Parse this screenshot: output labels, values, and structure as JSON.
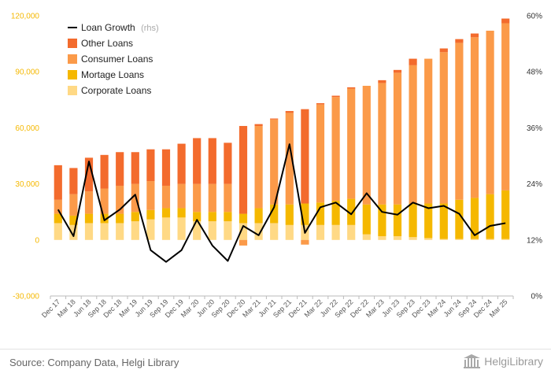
{
  "colors": {
    "other": "#f36b2d",
    "consumer": "#fb9a49",
    "mortgage": "#f5b800",
    "corporate": "#ffd985",
    "growth": "#000000",
    "left_axis": "#f5b800"
  },
  "legend": {
    "growth_label": "Loan Growth",
    "growth_suffix": "(rhs)",
    "other_label": "Other Loans",
    "consumer_label": "Consumer Loans",
    "mortgage_label": "Mortage Loans",
    "corporate_label": "Corporate Loans"
  },
  "footer": {
    "source": "Source: Company Data, Helgi Library",
    "brand": "HelgiLibrary",
    "brand_icon": "helgi-library-logo-icon"
  },
  "chart_data": {
    "type": "bar",
    "stacked": true,
    "categories": [
      "Dec 17",
      "Mar 18",
      "Jun 18",
      "Sep 18",
      "Dec 18",
      "Mar 19",
      "Jun 19",
      "Sep 19",
      "Dec 19",
      "Mar 20",
      "Jun 20",
      "Sep 20",
      "Dec 20",
      "Mar 21",
      "Jun 21",
      "Sep 21",
      "Dec 21",
      "Mar 22",
      "Jun 22",
      "Sep 22",
      "Dec 22",
      "Mar 23",
      "Jun 23",
      "Sep 23",
      "Dec 23",
      "Mar 24",
      "Jun 24",
      "Sep 24",
      "Dec 24",
      "Mar 25"
    ],
    "x_tick_labels": [
      "Dec 17",
      "Mar 18",
      "Jun 18",
      "Sep 18",
      "Dec 18",
      "Mar 19",
      "Jun 19",
      "Sep 19",
      "Dec 19",
      "Mar 20",
      "Jun 20",
      "Sep 20",
      "Dec 20",
      "Mar 21",
      "Jun 21",
      "Sep 21",
      "Dec 21",
      "Mar 22",
      "Jun 22",
      "Sep 22",
      "Dec 22",
      "Mar 23",
      "Jun 23",
      "Sep 23",
      "Dec 23",
      "Mar 24",
      "Jun 24",
      "Sep 24",
      "Dec 24",
      "Mar 25"
    ],
    "series": [
      {
        "name": "Corporate Loans",
        "key": "corporate",
        "values": [
          9000,
          8000,
          9000,
          9000,
          9000,
          10000,
          11000,
          12000,
          12000,
          10000,
          10000,
          10000,
          9000,
          9000,
          9000,
          8000,
          8000,
          8000,
          8000,
          8000,
          3000,
          2000,
          2000,
          1500,
          1000,
          500,
          500,
          500,
          500,
          500
        ]
      },
      {
        "name": "Mortage Loans",
        "key": "mortgage",
        "values": [
          5000,
          5000,
          5000,
          5000,
          5000,
          5000,
          5000,
          5000,
          5000,
          5000,
          5000,
          5000,
          5000,
          8000,
          10000,
          11000,
          11500,
          12000,
          13000,
          14000,
          16000,
          17000,
          17000,
          18000,
          18500,
          19000,
          21000,
          22000,
          24000,
          26000
        ]
      },
      {
        "name": "Consumer Loans",
        "key": "consumer",
        "values": [
          7500,
          11500,
          12000,
          13500,
          15000,
          15000,
          15500,
          12000,
          13000,
          15000,
          15000,
          15000,
          -3000,
          44000,
          45500,
          49000,
          -2500,
          52500,
          55500,
          59000,
          63500,
          65000,
          70500,
          74000,
          77500,
          81000,
          84000,
          86000,
          87500,
          89500
        ]
      },
      {
        "name": "Other Loans",
        "key": "other",
        "values": [
          18500,
          14000,
          18000,
          18000,
          18000,
          17000,
          17000,
          19500,
          21500,
          24500,
          24500,
          22000,
          47000,
          1000,
          500,
          1000,
          50500,
          700,
          700,
          700,
          0,
          1500,
          1500,
          3500,
          0,
          2000,
          2000,
          2000,
          0,
          2500
        ]
      },
      {
        "name": "Loan Growth",
        "key": "growth",
        "axis": "rhs",
        "values": [
          18.5,
          12.8,
          28.8,
          16.2,
          18.5,
          21.7,
          9.8,
          7.3,
          9.8,
          16.3,
          10.8,
          7.5,
          15,
          13,
          19,
          32.5,
          13.5,
          19,
          20,
          17.5,
          22,
          18,
          17.4,
          20,
          18.8,
          19.3,
          17.6,
          13,
          15,
          15.6
        ]
      }
    ],
    "left_axis": {
      "min": -30000,
      "max": 120000,
      "ticks": [
        -30000,
        0,
        30000,
        60000,
        90000,
        120000
      ],
      "tick_labels": [
        "-30,000",
        "0",
        "30,000",
        "60,000",
        "90,000",
        "120,000"
      ]
    },
    "right_axis": {
      "min": 0,
      "max": 60,
      "ticks": [
        0,
        12,
        24,
        36,
        48,
        60
      ],
      "tick_labels": [
        "0%",
        "12%",
        "24%",
        "36%",
        "48%",
        "60%"
      ]
    },
    "grid": false,
    "legend_position": "top-left"
  }
}
